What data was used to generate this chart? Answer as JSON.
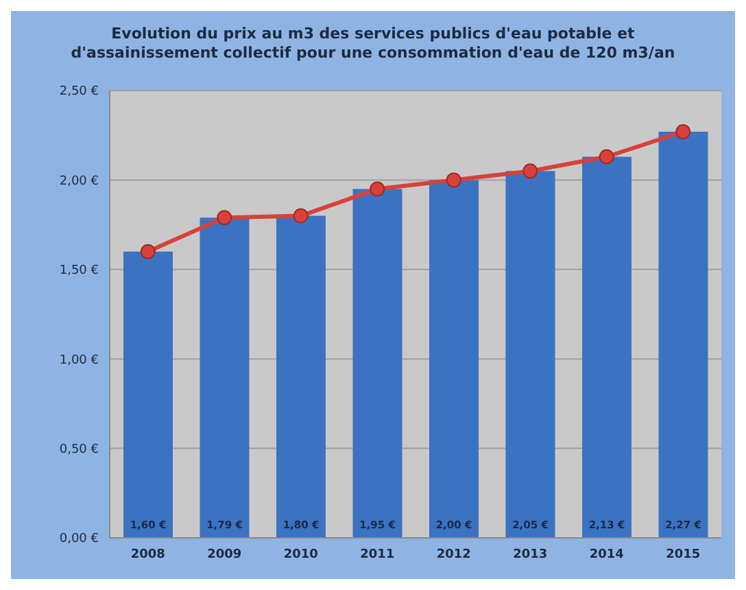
{
  "chart_data": {
    "type": "bar",
    "title": "Evolution du prix au m3 des services publics d'eau potable et d'assainissement collectif pour une consommation d'eau de 120 m3/an",
    "categories": [
      "2008",
      "2009",
      "2010",
      "2011",
      "2012",
      "2013",
      "2014",
      "2015"
    ],
    "series": [
      {
        "color": "#3b73c2",
        "values": [
          1.6,
          1.79,
          1.8,
          1.95,
          2.0,
          2.05,
          2.13,
          2.27
        ],
        "value_labels": [
          "1,60 €",
          "1,79 €",
          "1,80 €",
          "1,95 €",
          "2,00 €",
          "2,05 €",
          "2,13 €",
          "2,27 €"
        ]
      },
      {
        "type": "line",
        "color": "#d8413a",
        "values": [
          1.6,
          1.79,
          1.8,
          1.95,
          2.0,
          2.05,
          2.13,
          2.27
        ]
      }
    ],
    "ylim": [
      0,
      2.5
    ],
    "yticks": [
      {
        "value": 0,
        "label": "0,00 €"
      },
      {
        "value": 0.5,
        "label": "0,50 €"
      },
      {
        "value": 1,
        "label": "1,00 €"
      },
      {
        "value": 1.5,
        "label": "1,50 €"
      },
      {
        "value": 2,
        "label": "2,00 €"
      },
      {
        "value": 2.5,
        "label": "2,50 €"
      }
    ],
    "grid": "y",
    "legend": false,
    "marker": "circle",
    "line_style": "solid"
  }
}
